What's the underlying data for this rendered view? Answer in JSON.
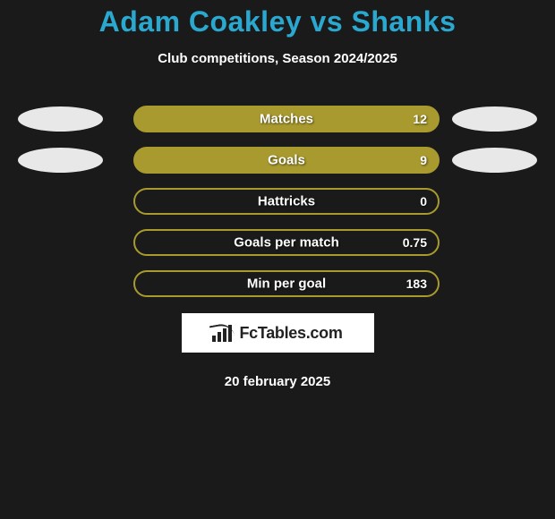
{
  "colors": {
    "background": "#1a1a1a",
    "title": "#2aa8d0",
    "bar_fill": "#a89a2e",
    "bar_border": "#a89a2e",
    "ellipse": "#e8e8e8",
    "text": "#ffffff",
    "logo_bg": "#ffffff",
    "logo_fg": "#222222"
  },
  "title": "Adam Coakley vs Shanks",
  "subtitle": "Club competitions, Season 2024/2025",
  "stats": [
    {
      "label": "Matches",
      "value": "12",
      "fill_pct": 100,
      "left_ellipse": true,
      "right_ellipse": true
    },
    {
      "label": "Goals",
      "value": "9",
      "fill_pct": 100,
      "left_ellipse": true,
      "right_ellipse": true
    },
    {
      "label": "Hattricks",
      "value": "0",
      "fill_pct": 0,
      "left_ellipse": false,
      "right_ellipse": false
    },
    {
      "label": "Goals per match",
      "value": "0.75",
      "fill_pct": 0,
      "left_ellipse": false,
      "right_ellipse": false
    },
    {
      "label": "Min per goal",
      "value": "183",
      "fill_pct": 0,
      "left_ellipse": false,
      "right_ellipse": false
    }
  ],
  "logo": {
    "text": "FcTables.com"
  },
  "date": "20 february 2025"
}
